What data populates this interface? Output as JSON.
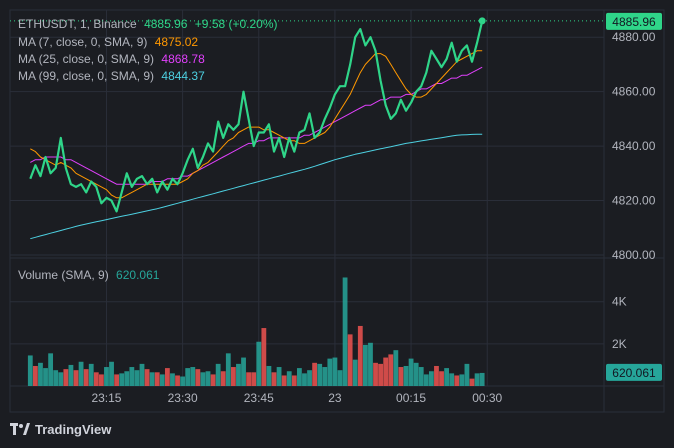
{
  "header": {
    "symbol": "ETHUSDT, 1, Binance",
    "last": "4885.96",
    "change": "+9.58 (+0.20%)"
  },
  "indicators": [
    {
      "label": "MA (7, close, 0, SMA, 9)",
      "value": "4875.02",
      "color": "#ff9800"
    },
    {
      "label": "MA (25, close, 0, SMA, 9)",
      "value": "4868.78",
      "color": "#e040fb"
    },
    {
      "label": "MA (99, close, 0, SMA, 9)",
      "value": "4844.37",
      "color": "#4dd0e1"
    }
  ],
  "volume_legend": {
    "label": "Volume (SMA, 9)",
    "value": "620.061"
  },
  "price_axis": {
    "ticks": [
      "4880.00",
      "4860.00",
      "4840.00",
      "4820.00",
      "4800.00"
    ],
    "last_badge": "4885.96"
  },
  "volume_axis": {
    "ticks": [
      "4K",
      "2K"
    ],
    "last_badge": "620.061"
  },
  "time_axis": {
    "ticks": [
      "23:15",
      "23:30",
      "23:45",
      "23",
      "00:15",
      "00:30"
    ]
  },
  "brand": "TradingView",
  "colors": {
    "up": "#26a69a",
    "down": "#ef5350",
    "price_line": "#2fd589",
    "bg": "#1b1d22",
    "grid": "#2a2e39"
  },
  "chart_data": [
    {
      "type": "line",
      "title": "ETHUSDT, 1, Binance",
      "x_unit": "minutes since 23:00",
      "x": [
        0,
        1,
        2,
        3,
        4,
        5,
        6,
        7,
        8,
        9,
        10,
        11,
        12,
        13,
        14,
        15,
        16,
        17,
        18,
        19,
        20,
        21,
        22,
        23,
        24,
        25,
        26,
        27,
        28,
        29,
        30,
        31,
        32,
        33,
        34,
        35,
        36,
        37,
        38,
        39,
        40,
        41,
        42,
        43,
        44,
        45,
        46,
        47,
        48,
        49,
        50,
        51,
        52,
        53,
        54,
        55,
        56,
        57,
        58,
        59,
        60,
        61,
        62,
        63,
        64,
        65,
        66,
        67,
        68,
        69,
        70,
        71,
        72,
        73,
        74,
        75,
        76,
        77,
        78,
        79,
        80,
        81,
        82,
        83,
        84,
        85,
        86,
        87,
        88,
        89
      ],
      "ylim": [
        4800,
        4890
      ],
      "series": [
        {
          "name": "ETHUSDT",
          "values": [
            4828,
            4833,
            4829,
            4836,
            4830,
            4832,
            4843,
            4832,
            4826,
            4825,
            4826,
            4823,
            4827,
            4825,
            4819,
            4821,
            4820,
            4816,
            4823,
            4830,
            4825,
            4828,
            4829,
            4826,
            4828,
            4823,
            4827,
            4824,
            4828,
            4826,
            4830,
            4835,
            4839,
            4832,
            4836,
            4841,
            4838,
            4849,
            4843,
            4848,
            4846,
            4848,
            4860,
            4850,
            4840,
            4845,
            4845,
            4848,
            4838,
            4843,
            4836,
            4843,
            4838,
            4845,
            4846,
            4852,
            4843,
            4845,
            4850,
            4854,
            4859,
            4862,
            4862,
            4870,
            4880,
            4883,
            4877,
            4880,
            4875,
            4864,
            4855,
            4850,
            4852,
            4857,
            4853,
            4856,
            4860,
            4862,
            4867,
            4875,
            4872,
            4869,
            4872,
            4878,
            4871,
            4875,
            4877,
            4871,
            4878,
            4886
          ]
        },
        {
          "name": "MA (7, close, 0, SMA, 9)",
          "values": [
            4839,
            4838,
            4836,
            4835,
            4834,
            4833,
            4834,
            4833,
            4832,
            4830,
            4829,
            4828,
            4827,
            4826,
            4825,
            4824,
            4822,
            4821,
            4821,
            4822,
            4823,
            4824,
            4825,
            4826,
            4826,
            4826,
            4826,
            4826,
            4826,
            4826,
            4827,
            4828,
            4830,
            4831,
            4833,
            4834,
            4836,
            4838,
            4840,
            4842,
            4843,
            4845,
            4846,
            4847,
            4847,
            4847,
            4846,
            4846,
            4845,
            4844,
            4843,
            4842,
            4842,
            4841,
            4841,
            4842,
            4843,
            4844,
            4845,
            4847,
            4850,
            4853,
            4856,
            4859,
            4863,
            4867,
            4870,
            4872,
            4874,
            4874,
            4873,
            4870,
            4867,
            4864,
            4861,
            4859,
            4858,
            4858,
            4859,
            4861,
            4863,
            4865,
            4867,
            4869,
            4871,
            4872,
            4873,
            4874,
            4875,
            4875
          ]
        },
        {
          "name": "MA (25, close, 0, SMA, 9)",
          "values": [
            4834,
            4835,
            4835,
            4836,
            4836,
            4836,
            4836,
            4835,
            4835,
            4834,
            4833,
            4832,
            4831,
            4830,
            4829,
            4828,
            4827,
            4826,
            4826,
            4826,
            4826,
            4826,
            4826,
            4826,
            4827,
            4827,
            4827,
            4828,
            4828,
            4828,
            4829,
            4829,
            4830,
            4831,
            4832,
            4833,
            4834,
            4835,
            4836,
            4837,
            4838,
            4839,
            4840,
            4841,
            4841,
            4842,
            4842,
            4843,
            4843,
            4843,
            4843,
            4843,
            4843,
            4843,
            4844,
            4844,
            4845,
            4846,
            4847,
            4848,
            4849,
            4850,
            4851,
            4852,
            4853,
            4854,
            4855,
            4855,
            4856,
            4857,
            4857,
            4858,
            4858,
            4858,
            4859,
            4859,
            4860,
            4861,
            4861,
            4862,
            4863,
            4863,
            4864,
            4865,
            4865,
            4866,
            4866,
            4867,
            4868,
            4869
          ]
        },
        {
          "name": "MA (99, close, 0, SMA, 9)",
          "values": [
            4806,
            4806.5,
            4807,
            4807.5,
            4808,
            4808.5,
            4809,
            4809.5,
            4810,
            4810.5,
            4811,
            4811.4,
            4811.8,
            4812.2,
            4812.6,
            4813,
            4813.4,
            4813.8,
            4814.2,
            4814.6,
            4815,
            4815.4,
            4815.8,
            4816.2,
            4816.6,
            4817,
            4817.5,
            4818,
            4818.5,
            4819,
            4819.5,
            4820,
            4820.5,
            4821,
            4821.5,
            4822,
            4822.5,
            4823,
            4823.5,
            4824,
            4824.5,
            4825,
            4825.5,
            4826,
            4826.5,
            4827,
            4827.5,
            4828,
            4828.5,
            4829,
            4829.5,
            4830,
            4830.5,
            4831,
            4831.5,
            4832,
            4832.6,
            4833.2,
            4833.8,
            4834.4,
            4835,
            4835.5,
            4836,
            4836.5,
            4837,
            4837.4,
            4837.8,
            4838.2,
            4838.6,
            4839,
            4839.4,
            4839.8,
            4840.2,
            4840.6,
            4841,
            4841.3,
            4841.6,
            4841.9,
            4842.2,
            4842.5,
            4842.8,
            4843.1,
            4843.4,
            4843.7,
            4844,
            4844.1,
            4844.2,
            4844.3,
            4844.35,
            4844.37
          ]
        }
      ]
    },
    {
      "type": "bar",
      "title": "Volume (SMA, 9)",
      "x_unit": "minutes since 23:00",
      "ylim": [
        0,
        5600
      ],
      "values": [
        1450,
        950,
        1100,
        850,
        1550,
        750,
        650,
        800,
        1000,
        750,
        1150,
        800,
        1050,
        650,
        550,
        900,
        1150,
        550,
        600,
        700,
        900,
        750,
        1050,
        800,
        650,
        650,
        550,
        850,
        600,
        500,
        450,
        850,
        900,
        800,
        650,
        700,
        550,
        1050,
        700,
        1550,
        900,
        1050,
        1350,
        650,
        650,
        2100,
        2750,
        950,
        650,
        900,
        500,
        700,
        500,
        850,
        600,
        750,
        1100,
        1050,
        900,
        1300,
        1350,
        750,
        5150,
        2450,
        1250,
        2850,
        1950,
        2050,
        1100,
        1050,
        1350,
        1500,
        1700,
        900,
        950,
        1300,
        1100,
        900,
        550,
        700,
        950,
        700,
        850,
        600,
        500,
        550,
        1050,
        350,
        600,
        620
      ],
      "up": [
        1,
        0,
        1,
        1,
        1,
        1,
        1,
        0,
        1,
        0,
        1,
        0,
        1,
        0,
        0,
        1,
        1,
        0,
        1,
        1,
        1,
        1,
        1,
        0,
        1,
        0,
        1,
        0,
        1,
        0,
        1,
        1,
        1,
        0,
        1,
        1,
        0,
        1,
        0,
        1,
        0,
        1,
        1,
        0,
        0,
        1,
        0,
        1,
        0,
        1,
        0,
        1,
        0,
        1,
        1,
        1,
        0,
        1,
        1,
        1,
        1,
        1,
        1,
        0,
        1,
        0,
        1,
        1,
        0,
        0,
        0,
        0,
        1,
        0,
        1,
        1,
        1,
        1,
        1,
        1,
        0,
        0,
        1,
        1,
        0,
        1,
        1,
        0,
        1,
        1
      ]
    }
  ]
}
